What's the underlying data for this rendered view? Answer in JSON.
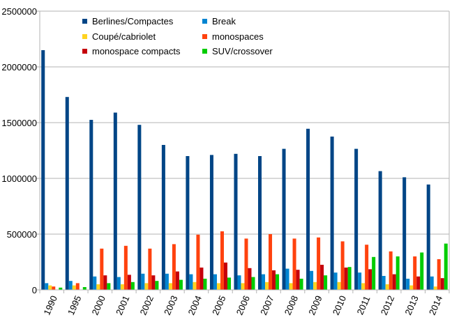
{
  "chart_data": {
    "type": "bar",
    "categories": [
      "1990",
      "1995",
      "2000",
      "2001",
      "2002",
      "2003",
      "2004",
      "2005",
      "2006",
      "2007",
      "2008",
      "2009",
      "2010",
      "2011",
      "2012",
      "2013",
      "2014"
    ],
    "series": [
      {
        "name": "Berlines/Compactes",
        "color": "#004586",
        "values": [
          2150000,
          1730000,
          1525000,
          1590000,
          1480000,
          1300000,
          1200000,
          1210000,
          1220000,
          1200000,
          1265000,
          1445000,
          1375000,
          1265000,
          1065000,
          1010000,
          945000
        ]
      },
      {
        "name": "Break",
        "color": "#0084d1",
        "values": [
          60000,
          80000,
          120000,
          115000,
          145000,
          145000,
          140000,
          140000,
          130000,
          140000,
          190000,
          170000,
          155000,
          155000,
          125000,
          100000,
          120000
        ]
      },
      {
        "name": "Coupé/cabriolet",
        "color": "#ffd320",
        "values": [
          40000,
          40000,
          50000,
          50000,
          60000,
          60000,
          70000,
          60000,
          60000,
          70000,
          60000,
          70000,
          70000,
          60000,
          50000,
          40000,
          30000
        ]
      },
      {
        "name": "monospaces",
        "color": "#ff420e",
        "values": [
          30000,
          60000,
          370000,
          395000,
          370000,
          410000,
          495000,
          525000,
          460000,
          500000,
          460000,
          470000,
          435000,
          405000,
          345000,
          300000,
          275000
        ]
      },
      {
        "name": "monospace compacts",
        "color": "#c5000b",
        "values": [
          0,
          0,
          130000,
          135000,
          130000,
          165000,
          200000,
          245000,
          195000,
          175000,
          180000,
          225000,
          200000,
          185000,
          140000,
          120000,
          105000
        ]
      },
      {
        "name": "SUV/crossover",
        "color": "#00cc00",
        "values": [
          20000,
          25000,
          60000,
          70000,
          80000,
          90000,
          100000,
          110000,
          115000,
          140000,
          100000,
          130000,
          205000,
          295000,
          300000,
          335000,
          415000
        ]
      }
    ],
    "ylim": [
      0,
      2500000
    ],
    "yticks": [
      0,
      500000,
      1000000,
      1500000,
      2000000,
      2500000
    ],
    "ytick_labels": [
      "0",
      "500000",
      "1000000",
      "1500000",
      "2000000",
      "2500000"
    ],
    "grid": true,
    "legend_position": "top"
  }
}
